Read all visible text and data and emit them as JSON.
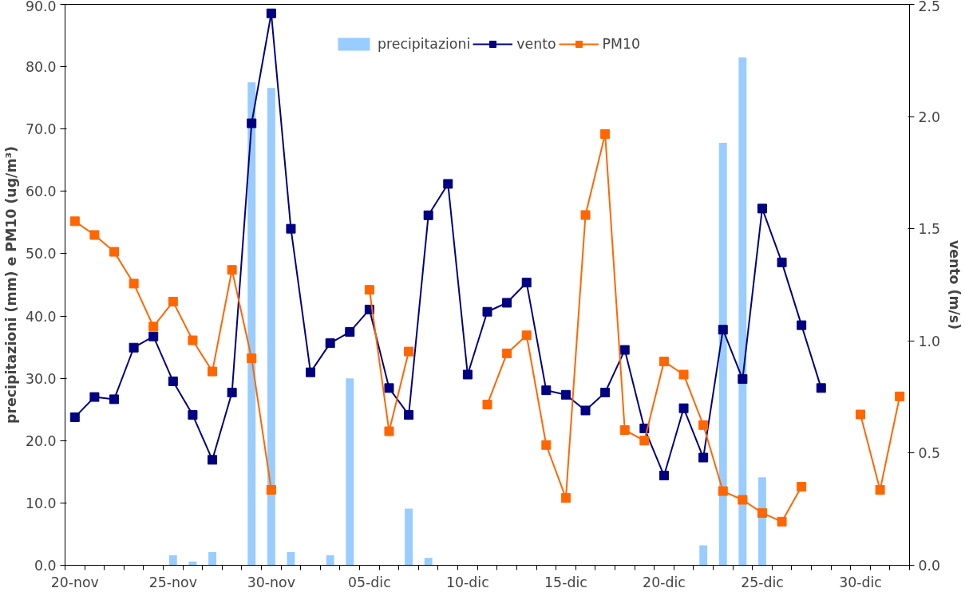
{
  "chart_data": {
    "type": "line",
    "ylabel": "precipitazioni (mm) e PM10 (ug/m³)",
    "y2label": "vento (m/s)",
    "categories": [
      "20-nov",
      null,
      null,
      null,
      null,
      "25-nov",
      null,
      null,
      null,
      null,
      "30-nov",
      null,
      null,
      null,
      null,
      "05-dic",
      null,
      null,
      null,
      null,
      "10-dic",
      null,
      null,
      null,
      null,
      "15-dic",
      null,
      null,
      null,
      null,
      "20-dic",
      null,
      null,
      null,
      null,
      "25-dic",
      null,
      null,
      null,
      null,
      "30-dic",
      null,
      null
    ],
    "series": [
      {
        "name": "precipitazioni",
        "type": "bar",
        "color": "#99ccff",
        "values": [
          0,
          0,
          0,
          0,
          null,
          1.6,
          0.6,
          2.1,
          0,
          77.5,
          76.6,
          2.1,
          null,
          1.6,
          30.0,
          0,
          0,
          9.1,
          1.2,
          0,
          0,
          0,
          0,
          0,
          0,
          0,
          null,
          0,
          0,
          0,
          0,
          0,
          3.2,
          67.8,
          81.5,
          14.1,
          0,
          0,
          0,
          0,
          0,
          0,
          0
        ]
      },
      {
        "name": "vento",
        "axis": "y2",
        "color": "#000080",
        "marker": "square",
        "line_style": "solid",
        "values": [
          0.66,
          0.75,
          0.74,
          0.97,
          1.02,
          0.82,
          0.67,
          0.47,
          0.77,
          1.97,
          2.46,
          1.5,
          0.86,
          0.99,
          1.04,
          1.14,
          0.79,
          0.67,
          1.56,
          1.7,
          0.85,
          1.13,
          1.17,
          1.26,
          0.78,
          0.76,
          0.69,
          0.77,
          0.96,
          0.61,
          0.4,
          0.7,
          0.48,
          1.05,
          0.83,
          1.59,
          1.35,
          1.07,
          0.79,
          null,
          null,
          null,
          null
        ]
      },
      {
        "name": "PM10",
        "color": "#ff6600",
        "marker": "square",
        "line_style": "solid",
        "values": [
          55.2,
          53.0,
          50.3,
          45.2,
          38.3,
          42.3,
          36.1,
          31.1,
          47.4,
          33.2,
          12.1,
          null,
          null,
          null,
          null,
          44.2,
          21.5,
          34.3,
          null,
          null,
          null,
          25.8,
          34.0,
          36.9,
          19.3,
          10.8,
          56.2,
          69.2,
          21.7,
          20.0,
          32.7,
          30.6,
          22.5,
          11.9,
          10.5,
          8.4,
          7.0,
          12.6,
          null,
          null,
          24.2,
          12.1,
          27.1
        ]
      }
    ],
    "ylim": [
      0,
      90
    ],
    "yticks": [
      {
        "value": 0,
        "label": "0.0"
      },
      {
        "value": 10,
        "label": "10.0"
      },
      {
        "value": 20,
        "label": "20.0"
      },
      {
        "value": 30,
        "label": "30.0"
      },
      {
        "value": 40,
        "label": "40.0"
      },
      {
        "value": 50,
        "label": "50.0"
      },
      {
        "value": 60,
        "label": "60.0"
      },
      {
        "value": 70,
        "label": "70.0"
      },
      {
        "value": 80,
        "label": "80.0"
      },
      {
        "value": 90,
        "label": "90.0"
      }
    ],
    "y2lim": [
      0,
      2.5
    ],
    "y2ticks": [
      {
        "value": 0,
        "label": "0.0"
      },
      0.5,
      {
        "value": 1,
        "label": "1.0"
      },
      1.5,
      {
        "value": 2,
        "label": "2.0"
      },
      2.5
    ],
    "grid": false,
    "legend": "top"
  }
}
